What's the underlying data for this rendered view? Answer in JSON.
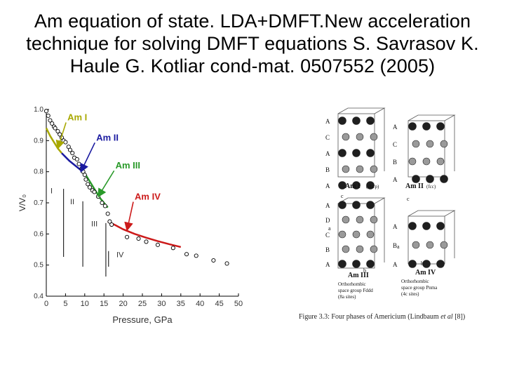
{
  "slide": {
    "title_lines": [
      "Am equation of state. LDA+DMFT.New acceleration",
      "technique for solving DMFT equations S.  Savrasov K.",
      "Haule G. Kotliar cond-mat. 0507552 (2005)"
    ]
  },
  "chart_data": {
    "type": "scatter",
    "xlabel": "Pressure, GPa",
    "ylabel": "V/V₀",
    "xlim": [
      0,
      50
    ],
    "ylim": [
      0.4,
      1.0
    ],
    "xticks": [
      "0",
      "5",
      "10",
      "15",
      "20",
      "25",
      "30",
      "35",
      "40",
      "45",
      "50"
    ],
    "yticks": [
      "0.4",
      "0.5",
      "0.6",
      "0.7",
      "0.8",
      "0.9",
      "1.0"
    ],
    "phase_boundaries": [
      {
        "x": 4.5,
        "y_top": 0.745,
        "label": "I"
      },
      {
        "x": 9.5,
        "y_top": 0.705,
        "label": "II"
      },
      {
        "x": 15.5,
        "y_top": 0.635,
        "label": "III"
      },
      {
        "x": 16.2,
        "y_top": 0.545,
        "label": "IV"
      }
    ],
    "series": [
      {
        "name": "Am I",
        "color": "#a8a800",
        "x": [
          0,
          1,
          2,
          3,
          4
        ],
        "y": [
          0.94,
          0.915,
          0.895,
          0.875,
          0.86
        ]
      },
      {
        "name": "Am II",
        "color": "#1a1aa0",
        "x": [
          4,
          6,
          8,
          10
        ],
        "y": [
          0.86,
          0.835,
          0.815,
          0.795
        ]
      },
      {
        "name": "Am III",
        "color": "#2a9a2a",
        "x": [
          10,
          12,
          14,
          16
        ],
        "y": [
          0.795,
          0.755,
          0.715,
          0.685
        ]
      },
      {
        "name": "Am IV",
        "color": "#cc1a1a",
        "x": [
          16,
          18,
          20,
          23,
          26,
          29,
          32,
          35
        ],
        "y": [
          0.64,
          0.628,
          0.615,
          0.6,
          0.588,
          0.577,
          0.567,
          0.558
        ]
      }
    ],
    "experimental_points": {
      "x": [
        0,
        0.5,
        1,
        1.5,
        2,
        2.3,
        3,
        3.5,
        4,
        4.5,
        5,
        5.8,
        6.2,
        6.8,
        7.3,
        8,
        8.5,
        9.2,
        9.6,
        10,
        10.3,
        10.8,
        11.3,
        12,
        12.5,
        13.5,
        14.5,
        15.3,
        16,
        16.5,
        17,
        21,
        24,
        26,
        29,
        33,
        36.5,
        39,
        43.5,
        47
      ],
      "y": [
        0.995,
        0.98,
        0.965,
        0.955,
        0.945,
        0.94,
        0.93,
        0.92,
        0.91,
        0.9,
        0.895,
        0.88,
        0.87,
        0.86,
        0.845,
        0.84,
        0.825,
        0.81,
        0.8,
        0.79,
        0.775,
        0.76,
        0.75,
        0.74,
        0.735,
        0.72,
        0.7,
        0.69,
        0.665,
        0.64,
        0.63,
        0.59,
        0.585,
        0.575,
        0.565,
        0.555,
        0.535,
        0.53,
        0.515,
        0.505
      ]
    },
    "annotations": [
      {
        "text": "Am I",
        "color": "#a8a800",
        "x": 5.5,
        "y": 0.965,
        "to_x": 3,
        "to_y": 0.875
      },
      {
        "text": "Am II",
        "color": "#1a1aa0",
        "x": 13,
        "y": 0.9,
        "to_x": 9,
        "to_y": 0.8
      },
      {
        "text": "Am III",
        "color": "#2a9a2a",
        "x": 18,
        "y": 0.81,
        "to_x": 13.5,
        "to_y": 0.72
      },
      {
        "text": "Am IV",
        "color": "#cc1a1a",
        "x": 23,
        "y": 0.71,
        "to_x": 21,
        "to_y": 0.612
      }
    ]
  },
  "structures": {
    "panels": [
      {
        "name": "Am I",
        "subscript": "(dhcp)",
        "layers": [
          "A",
          "C",
          "A",
          "B",
          "A"
        ]
      },
      {
        "name": "Am II",
        "subscript": "(fcc)",
        "layers": [
          "A",
          "C",
          "B",
          "A"
        ]
      },
      {
        "name": "Am III",
        "subscript": "",
        "layers": [
          "A",
          "D",
          "C",
          "B",
          "A"
        ],
        "desc_lines": [
          "Orthorhombic",
          "space group Fddd",
          "(8a sites)"
        ]
      },
      {
        "name": "Am IV",
        "subscript": "",
        "layers": [
          "A",
          "B",
          "A"
        ],
        "desc_lines": [
          "Orthorhombic",
          "space group Pnma",
          "(4c sites)"
        ]
      }
    ],
    "axis_labels": [
      "a",
      "b",
      "c"
    ]
  },
  "caption": {
    "prefix": "Figure 3.3: Four phases of Americium (Lindbaum",
    "et_al": "et   al",
    "suffix": "[8])"
  }
}
